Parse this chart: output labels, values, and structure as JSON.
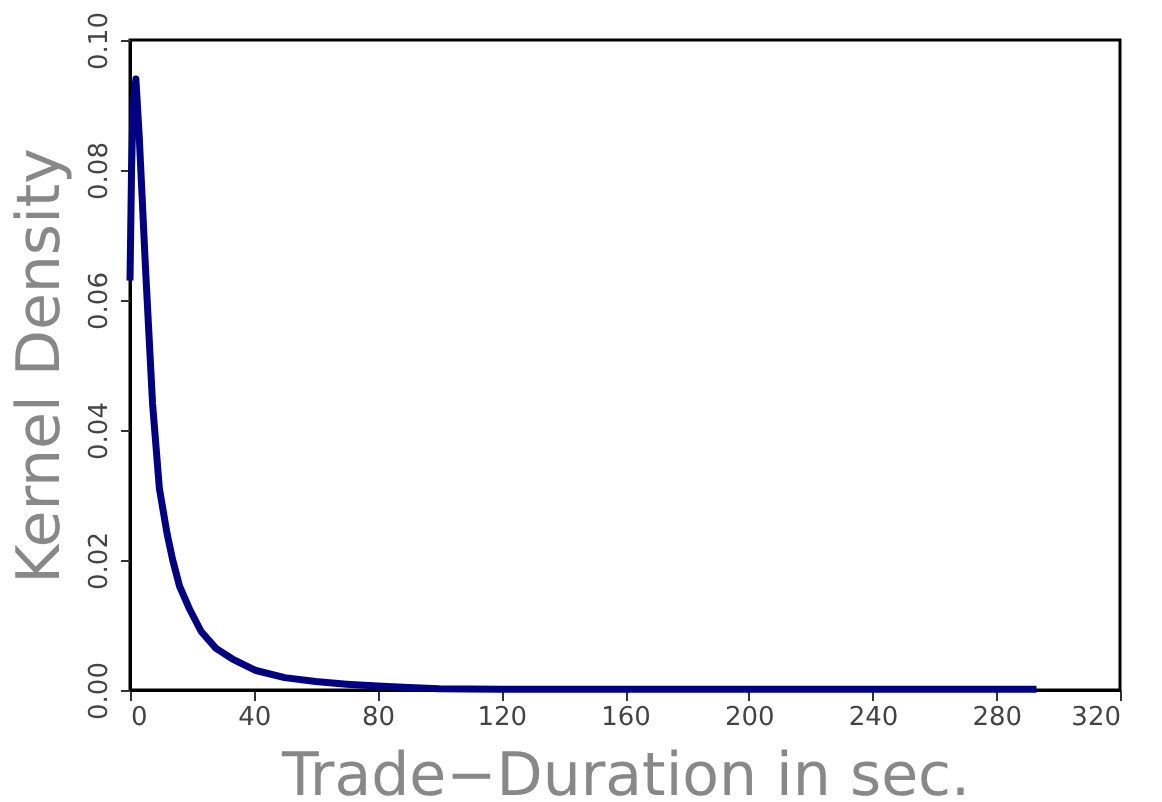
{
  "chart_data": {
    "type": "line",
    "xlabel": "Trade−Duration in sec.",
    "ylabel": "Kernel Density",
    "x": [
      0,
      0.5,
      1,
      1.9,
      3,
      5,
      7.3,
      9.5,
      12,
      13.8,
      16,
      19.2,
      23,
      27.8,
      33,
      40.7,
      50,
      60,
      70,
      80,
      90,
      100,
      120,
      140,
      160,
      180,
      200,
      220,
      240,
      260,
      280,
      293
    ],
    "series": [
      {
        "color": "#000080",
        "values": [
          0.063,
          0.08,
          0.09,
          0.094,
          0.085,
          0.065,
          0.044,
          0.031,
          0.024,
          0.02,
          0.016,
          0.0125,
          0.009,
          0.0064,
          0.0048,
          0.003,
          0.0019,
          0.0013,
          0.0009,
          0.0006,
          0.0004,
          0.0002,
          0.0001,
          0.0001,
          0.0001,
          0.0001,
          0.0001,
          0.0001,
          0.0001,
          0.0001,
          0.0001,
          0.0001
        ]
      }
    ],
    "xlim": [
      0,
      320
    ],
    "xticks": [
      0,
      40,
      80,
      120,
      160,
      200,
      240,
      280,
      320
    ],
    "ylim": [
      0,
      0.1
    ],
    "yticks": [
      {
        "value": 0,
        "label": "0.00"
      },
      {
        "value": 0.02,
        "label": "0.02"
      },
      {
        "value": 0.04,
        "label": "0.04"
      },
      {
        "value": 0.06,
        "label": "0.06"
      },
      {
        "value": 0.08,
        "label": "0.08"
      },
      {
        "value": 0.1,
        "label": "0.10"
      }
    ],
    "grid": false,
    "marker": "none",
    "line_style": "solid"
  }
}
